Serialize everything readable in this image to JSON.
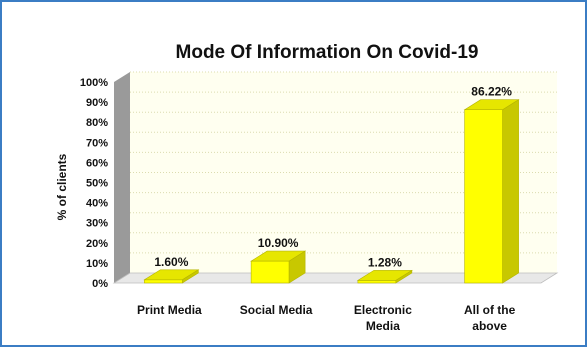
{
  "chart_data": {
    "type": "bar",
    "title": "Mode Of Information On Covid-19",
    "ylabel": "% of clients",
    "xlabel": "",
    "categories": [
      [
        "Print Media"
      ],
      [
        "Social Media"
      ],
      [
        "Electronic",
        "Media"
      ],
      [
        "All of the",
        "above"
      ]
    ],
    "values": [
      1.6,
      10.9,
      1.28,
      86.22
    ],
    "data_labels": [
      "1.60%",
      "10.90%",
      "1.28%",
      "86.22%"
    ],
    "ylim": [
      0,
      100
    ],
    "ytick_labels": [
      "0%",
      "10%",
      "20%",
      "30%",
      "40%",
      "50%",
      "60%",
      "70%",
      "80%",
      "90%",
      "100%"
    ],
    "grid": true,
    "bar_color": "#ffff00",
    "bar_side_color": "#c8c800",
    "bar_top_color": "#e6e600",
    "wall_color": "#fffff0",
    "axis_color": "#9a9a9a"
  }
}
